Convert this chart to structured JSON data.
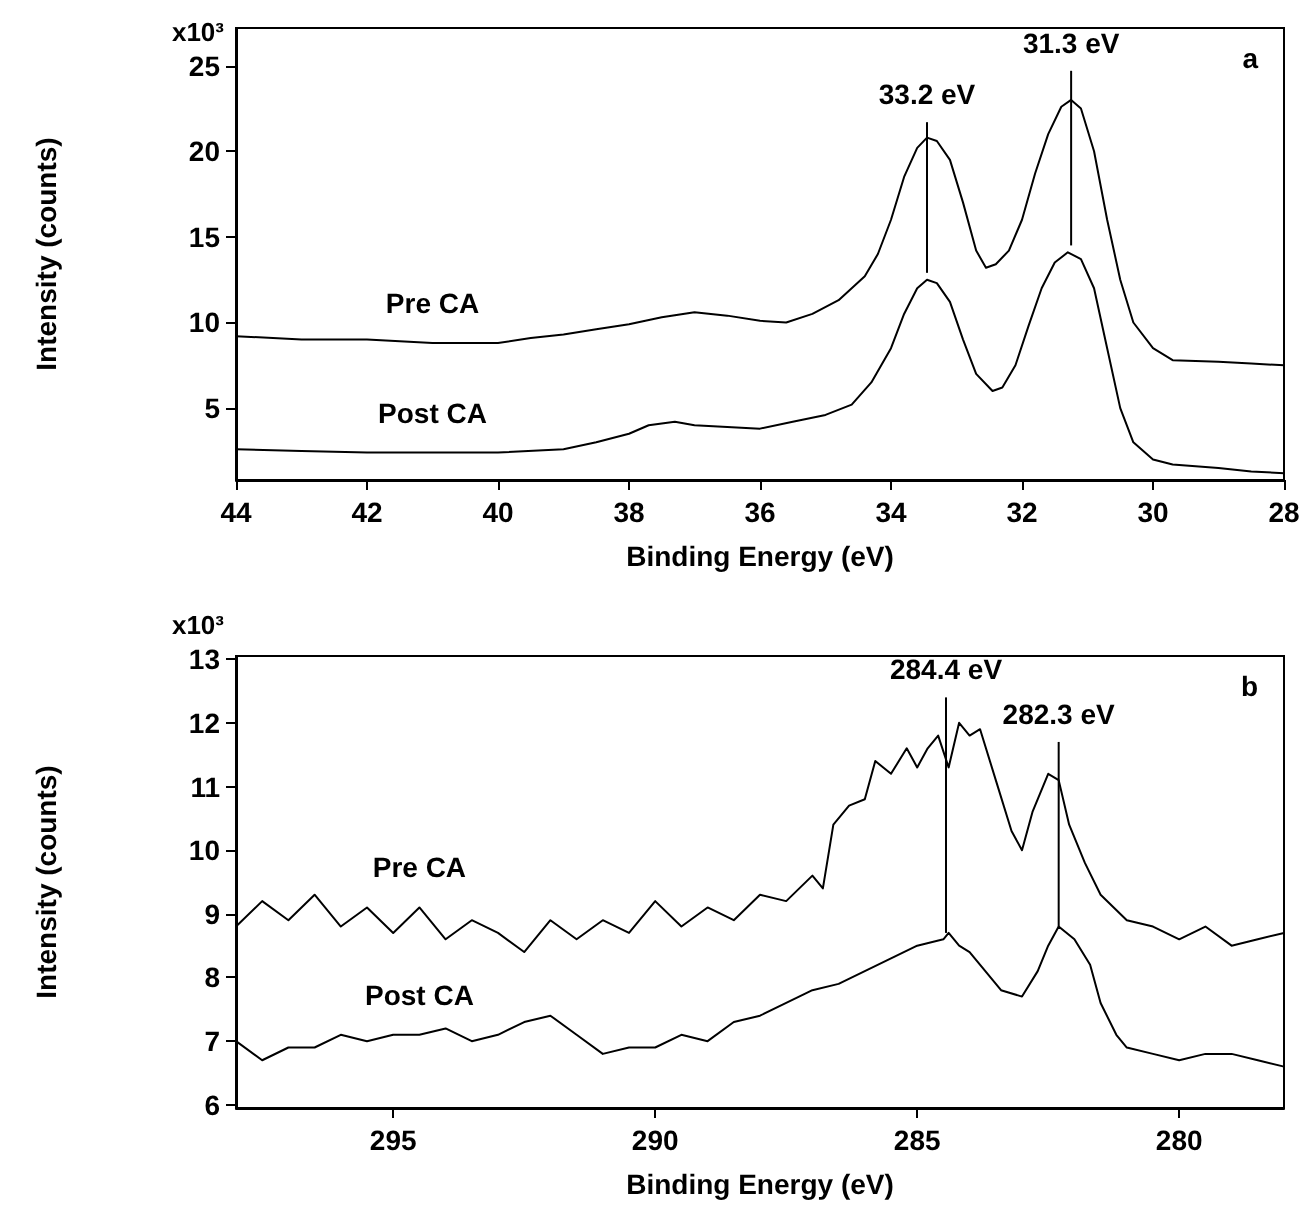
{
  "chart_data": [
    {
      "type": "line",
      "xlabel": "Binding Energy (eV)",
      "ylabel": "Intensity (counts)",
      "xlim": [
        44,
        28
      ],
      "ylim": [
        0.8,
        27.2
      ],
      "xticks": [
        44,
        42,
        40,
        38,
        36,
        34,
        32,
        30,
        28
      ],
      "yticks": [
        5,
        10,
        15,
        20,
        25
      ],
      "legend": false,
      "grid": false,
      "annotations": [
        "a",
        "x10³",
        {
          "text": "33.2 eV",
          "x": 33.45,
          "y": 21.7
        },
        {
          "text": "31.3 eV",
          "x": 31.25,
          "y": 24.7
        }
      ],
      "series": [
        {
          "name": "Pre CA",
          "color": "#000000",
          "x": [
            44,
            43,
            42,
            41,
            40,
            39.5,
            39,
            38.5,
            38,
            37.5,
            37,
            36.5,
            36,
            35.6,
            35.2,
            34.8,
            34.4,
            34.2,
            34.0,
            33.8,
            33.6,
            33.45,
            33.3,
            33.1,
            32.9,
            32.7,
            32.55,
            32.4,
            32.2,
            32.0,
            31.8,
            31.6,
            31.4,
            31.25,
            31.1,
            30.9,
            30.7,
            30.5,
            30.3,
            30.0,
            29.7,
            29.0,
            28.5,
            28
          ],
          "values": [
            9.2,
            9.0,
            9.0,
            8.8,
            8.8,
            9.1,
            9.3,
            9.6,
            9.9,
            10.3,
            10.6,
            10.4,
            10.1,
            10.0,
            10.5,
            11.3,
            12.7,
            14.0,
            16.0,
            18.5,
            20.2,
            20.8,
            20.6,
            19.5,
            17.0,
            14.2,
            13.2,
            13.4,
            14.2,
            16.0,
            18.7,
            21.0,
            22.6,
            23.0,
            22.5,
            20.0,
            16.0,
            12.5,
            10.0,
            8.5,
            7.8,
            7.7,
            7.6,
            7.5
          ]
        },
        {
          "name": "Post CA",
          "color": "#000000",
          "x": [
            44,
            43,
            42,
            41,
            40,
            39,
            38.5,
            38,
            37.7,
            37.3,
            37,
            36.5,
            36,
            35.5,
            35,
            34.6,
            34.3,
            34.0,
            33.8,
            33.6,
            33.45,
            33.3,
            33.1,
            32.9,
            32.7,
            32.45,
            32.3,
            32.1,
            31.9,
            31.7,
            31.5,
            31.3,
            31.1,
            30.9,
            30.7,
            30.5,
            30.3,
            30.0,
            29.7,
            29.0,
            28.5,
            28
          ],
          "values": [
            2.6,
            2.5,
            2.4,
            2.4,
            2.4,
            2.6,
            3.0,
            3.5,
            4.0,
            4.2,
            4.0,
            3.9,
            3.8,
            4.2,
            4.6,
            5.2,
            6.5,
            8.5,
            10.5,
            12.0,
            12.5,
            12.3,
            11.2,
            9.0,
            7.0,
            6.0,
            6.2,
            7.5,
            9.8,
            12.0,
            13.5,
            14.1,
            13.7,
            12.0,
            8.5,
            5.0,
            3.0,
            2.0,
            1.7,
            1.5,
            1.3,
            1.2
          ]
        },
        {
          "color": "#000000",
          "x": [
            33.45,
            33.45
          ],
          "values": [
            12.9,
            21.7
          ]
        },
        {
          "color": "#000000",
          "x": [
            31.25,
            31.25
          ],
          "values": [
            14.5,
            24.7
          ]
        }
      ]
    },
    {
      "type": "line",
      "xlabel": "Binding Energy (eV)",
      "ylabel": "Intensity (counts)",
      "xlim": [
        298,
        278
      ],
      "ylim": [
        5.95,
        13.05
      ],
      "xticks": [
        295,
        290,
        285,
        280
      ],
      "yticks": [
        6,
        7,
        8,
        9,
        10,
        11,
        12,
        13
      ],
      "legend": false,
      "grid": false,
      "annotations": [
        "b",
        "x10³",
        {
          "text": "284.4 eV",
          "x": 284.45,
          "y": 12.4
        },
        {
          "text": "282.3 eV",
          "x": 282.3,
          "y": 11.7
        }
      ],
      "series": [
        {
          "name": "Pre CA",
          "color": "#000000",
          "x": [
            298,
            297.5,
            297,
            296.5,
            296,
            295.5,
            295,
            294.5,
            294,
            293.5,
            293,
            292.5,
            292,
            291.5,
            291,
            290.5,
            290,
            289.5,
            289,
            288.5,
            288,
            287.5,
            287,
            286.8,
            286.6,
            286.3,
            286,
            285.8,
            285.5,
            285.2,
            285,
            284.8,
            284.6,
            284.4,
            284.2,
            284.0,
            283.8,
            283.5,
            283.2,
            283.0,
            282.8,
            282.5,
            282.3,
            282.1,
            281.8,
            281.5,
            281,
            280.5,
            280,
            279.5,
            279,
            278.5,
            278
          ],
          "values": [
            8.8,
            9.2,
            8.9,
            9.3,
            8.8,
            9.1,
            8.7,
            9.1,
            8.6,
            8.9,
            8.7,
            8.4,
            8.9,
            8.6,
            8.9,
            8.7,
            9.2,
            8.8,
            9.1,
            8.9,
            9.3,
            9.2,
            9.6,
            9.4,
            10.4,
            10.7,
            10.8,
            11.4,
            11.2,
            11.6,
            11.3,
            11.6,
            11.8,
            11.3,
            12.0,
            11.8,
            11.9,
            11.1,
            10.3,
            10.0,
            10.6,
            11.2,
            11.1,
            10.4,
            9.8,
            9.3,
            8.9,
            8.8,
            8.6,
            8.8,
            8.5,
            8.6,
            8.7
          ]
        },
        {
          "name": "Post CA",
          "color": "#000000",
          "x": [
            298,
            297.5,
            297,
            296.5,
            296,
            295.5,
            295,
            294.5,
            294,
            293.5,
            293,
            292.5,
            292,
            291.5,
            291,
            290.5,
            290,
            289.5,
            289,
            288.5,
            288,
            287.5,
            287,
            286.5,
            286,
            285.5,
            285,
            284.5,
            284.4,
            284.2,
            284,
            283.7,
            283.4,
            283,
            282.7,
            282.5,
            282.3,
            282,
            281.7,
            281.5,
            281.2,
            281,
            280.5,
            280,
            279.5,
            279,
            278.5,
            278
          ],
          "values": [
            7.0,
            6.7,
            6.9,
            6.9,
            7.1,
            7.0,
            7.1,
            7.1,
            7.2,
            7.0,
            7.1,
            7.3,
            7.4,
            7.1,
            6.8,
            6.9,
            6.9,
            7.1,
            7.0,
            7.3,
            7.4,
            7.6,
            7.8,
            7.9,
            8.1,
            8.3,
            8.5,
            8.6,
            8.7,
            8.5,
            8.4,
            8.1,
            7.8,
            7.7,
            8.1,
            8.5,
            8.8,
            8.6,
            8.2,
            7.6,
            7.1,
            6.9,
            6.8,
            6.7,
            6.8,
            6.8,
            6.7,
            6.6
          ]
        },
        {
          "color": "#000000",
          "x": [
            284.45,
            284.45
          ],
          "values": [
            8.7,
            12.4
          ]
        },
        {
          "color": "#000000",
          "x": [
            282.3,
            282.3
          ],
          "values": [
            8.8,
            11.7
          ]
        }
      ]
    }
  ]
}
